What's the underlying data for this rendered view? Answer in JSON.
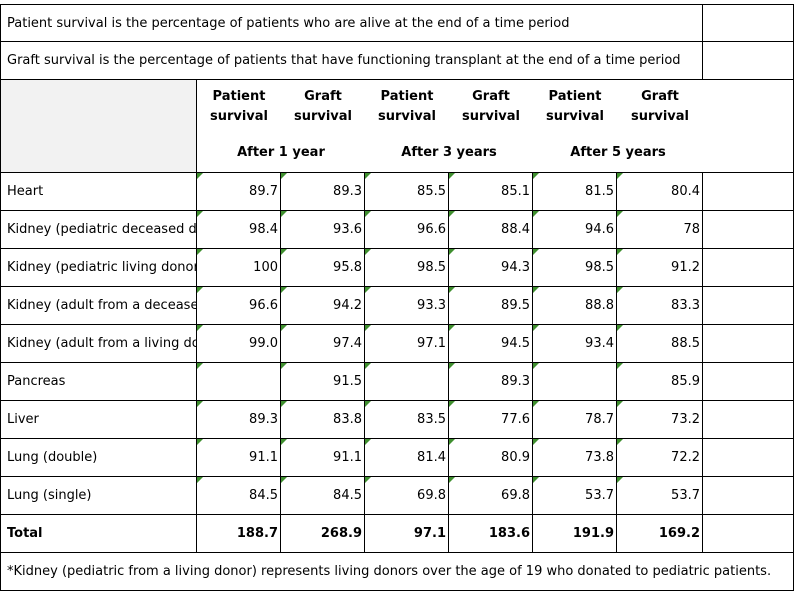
{
  "notes": {
    "patient_survival": "Patient survival is the percentage of patients who are alive at the end of a time period",
    "graft_survival": "Graft survival is the percentage of patients that have functioning transplant at the end of a time period",
    "footnote": "*Kidney (pediatric from a living donor) represents living donors over the age of 19 who donated to pediatric patients."
  },
  "header": {
    "pairs": [
      {
        "patient": [
          "Patient",
          "survival"
        ],
        "graft": [
          "Graft",
          "survival"
        ]
      },
      {
        "patient": [
          "Patient",
          "survival"
        ],
        "graft": [
          "Graft",
          "survival"
        ]
      },
      {
        "patient": [
          "Patient",
          "survival"
        ],
        "graft": [
          "Graft",
          "survival"
        ]
      }
    ],
    "periods": [
      "After 1 year",
      "After 3 years",
      "After 5 years"
    ]
  },
  "rows": [
    {
      "label": "Heart",
      "values": [
        "89.7",
        "89.3",
        "85.5",
        "85.1",
        "81.5",
        "80.4"
      ]
    },
    {
      "label": "Kidney (pediatric deceased donor)",
      "values": [
        "98.4",
        "93.6",
        "96.6",
        "88.4",
        "94.6",
        "78"
      ]
    },
    {
      "label": "Kidney (pediatric living donor)*",
      "values": [
        "100",
        "95.8",
        "98.5",
        "94.3",
        "98.5",
        "91.2"
      ]
    },
    {
      "label": "Kidney (adult from a deceased donor)",
      "values": [
        "96.6",
        "94.2",
        "93.3",
        "89.5",
        "88.8",
        "83.3"
      ]
    },
    {
      "label": "Kidney (adult from a living donor)",
      "values": [
        "99.0",
        "97.4",
        "97.1",
        "94.5",
        "93.4",
        "88.5"
      ]
    },
    {
      "label": "Pancreas",
      "values": [
        "",
        "91.5",
        "",
        "89.3",
        "",
        "85.9"
      ]
    },
    {
      "label": "Liver",
      "values": [
        "89.3",
        "83.8",
        "83.5",
        "77.6",
        "78.7",
        "73.2"
      ]
    },
    {
      "label": "Lung (double)",
      "values": [
        "91.1",
        "91.1",
        "81.4",
        "80.9",
        "73.8",
        "72.2"
      ]
    },
    {
      "label": "Lung (single)",
      "values": [
        "84.5",
        "84.5",
        "69.8",
        "69.8",
        "53.7",
        "53.7"
      ]
    }
  ],
  "total": {
    "label": "Total",
    "values": [
      "188.7",
      "268.9",
      "97.1",
      "183.6",
      "191.9",
      "169.2"
    ]
  }
}
